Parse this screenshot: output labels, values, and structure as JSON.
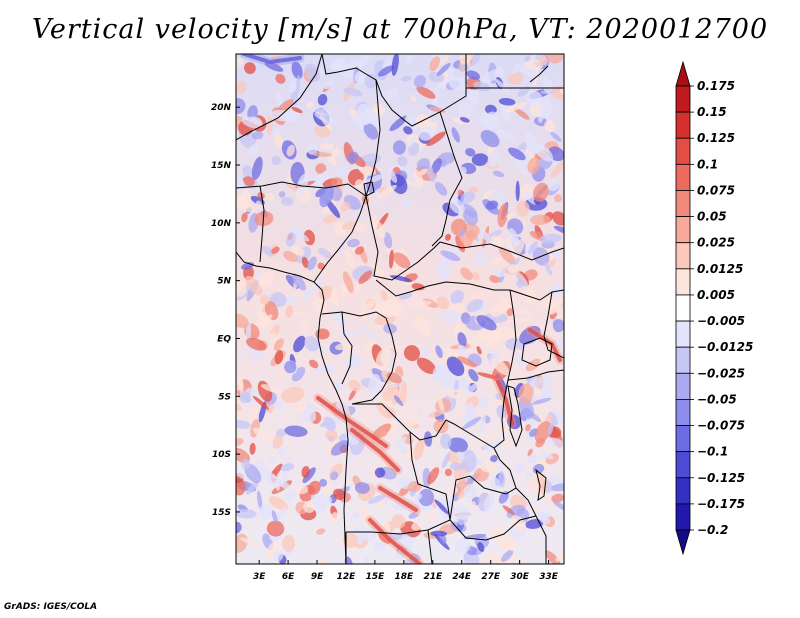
{
  "title": "Vertical velocity [m/s] at 700hPa, VT: 2020012700",
  "footer": "GrADS: IGES/COLA",
  "lat_labels": [
    "20N",
    "15N",
    "10N",
    "5N",
    "EQ",
    "5S",
    "10S",
    "15S"
  ],
  "lat_values": [
    20,
    15,
    10,
    5,
    0,
    -5,
    -10,
    -15
  ],
  "lon_labels": [
    "3E",
    "6E",
    "9E",
    "12E",
    "15E",
    "18E",
    "21E",
    "24E",
    "27E",
    "30E",
    "33E"
  ],
  "lon_values": [
    3,
    6,
    9,
    12,
    15,
    18,
    21,
    24,
    27,
    30,
    33
  ],
  "map_extent": {
    "lon_min": 0.6,
    "lon_max": 34.6,
    "lat_min": -19.5,
    "lat_max": 24.6
  },
  "colorbar": {
    "labels": [
      "0.175",
      "0.15",
      "0.125",
      "0.1",
      "0.075",
      "0.05",
      "0.025",
      "0.0125",
      "0.005",
      "−0.005",
      "−0.0125",
      "−0.025",
      "−0.05",
      "−0.075",
      "−0.1",
      "−0.125",
      "−0.175",
      "−0.2"
    ],
    "colors": [
      "#a50f15",
      "#c01a1e",
      "#d6302d",
      "#e34d44",
      "#ec6b5f",
      "#f28a7c",
      "#f7a99a",
      "#fbc8bb",
      "#fde4dc",
      "#ffffff",
      "#e3e3fb",
      "#c7c7f6",
      "#abaaf1",
      "#8e8cec",
      "#6e6ce3",
      "#4f4bd6",
      "#3530c4",
      "#2218ab",
      "#140b8a"
    ]
  }
}
